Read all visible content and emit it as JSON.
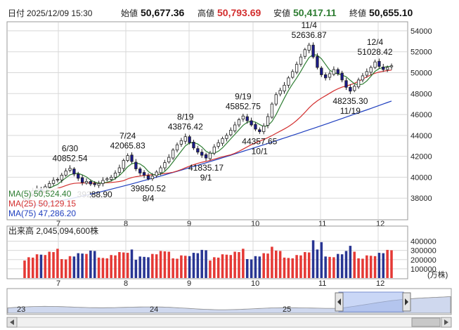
{
  "header": {
    "label_date": "日付",
    "date": "2025/12/09 15:30",
    "label_open": "始値",
    "open": "50,677.36",
    "label_high": "高値",
    "high": "50,793.69",
    "label_low": "安値",
    "low": "50,417.11",
    "label_close": "終値",
    "close": "50,655.10"
  },
  "colors": {
    "up": "#ffffff",
    "down": "#1a1a8c",
    "ma5": "#2e7d32",
    "ma25": "#d32f2f",
    "ma75": "#1f3fbf",
    "vol_up": "#e53935",
    "vol_down": "#283593",
    "high_value": "#d32f2f",
    "low_value": "#2e7d32",
    "range_fill": "#9fb6ef"
  },
  "legend": {
    "ma5": "MA(5)   50,524.40",
    "ma25": "MA(25)  50,129.15",
    "ma75": "MA(75)  47,286.20"
  },
  "volume": {
    "title": "出来高  2,045,094,600株",
    "unit": "(万株)",
    "ticks": [
      "400000",
      "300000",
      "200000",
      "100000"
    ]
  },
  "navigator": {
    "labels": [
      "23",
      "24",
      "25"
    ]
  },
  "chart_data": {
    "type": "candlestick",
    "y_ticks": [
      "54000",
      "52000",
      "50000",
      "48000",
      "46000",
      "44000",
      "42000",
      "40000",
      "38000"
    ],
    "ylim": [
      36000,
      54800
    ],
    "month_labels": [
      "7",
      "8",
      "9",
      "10",
      "11",
      "12"
    ],
    "annotations": [
      {
        "date": "6/30",
        "value": "40852.54"
      },
      {
        "date": "7/24",
        "value": "42065.83"
      },
      {
        "date": "8/4",
        "value": "39850.52"
      },
      {
        "date": "",
        "value": "39288.90"
      },
      {
        "date": "8/19",
        "value": "43876.42"
      },
      {
        "date": "9/1",
        "value": "41835.17"
      },
      {
        "date": "9/19",
        "value": "45852.75"
      },
      {
        "date": "10/1",
        "value": "44357.65"
      },
      {
        "date": "11/4",
        "value": "52636.87"
      },
      {
        "date": "11/19",
        "value": "48235.30"
      },
      {
        "date": "12/4",
        "value": "51028.42"
      }
    ],
    "close_series": [
      37900,
      38300,
      38700,
      38900,
      38600,
      39100,
      39400,
      39700,
      39800,
      40200,
      40600,
      40852,
      40300,
      39900,
      39500,
      39600,
      39350,
      39288,
      39400,
      39700,
      39850,
      40000,
      40400,
      40900,
      41600,
      42065,
      41500,
      40800,
      40400,
      40200,
      39850,
      40100,
      40500,
      40900,
      41400,
      41900,
      42600,
      43100,
      43500,
      43876,
      43300,
      42800,
      42400,
      42100,
      41835,
      42300,
      42900,
      43300,
      43700,
      44000,
      44500,
      45000,
      45500,
      45852,
      45400,
      45000,
      44600,
      44357,
      44900,
      45800,
      47000,
      47900,
      48300,
      48800,
      49500,
      50100,
      50800,
      51500,
      52200,
      52636,
      51500,
      50500,
      49800,
      49500,
      49900,
      50300,
      49900,
      49300,
      48600,
      48235,
      48700,
      49300,
      49700,
      50100,
      50500,
      51028,
      50600,
      50300,
      50500,
      50655
    ],
    "ma5_end": 50524.4,
    "ma25_end": 50129.15,
    "ma75_end": 47286.2
  }
}
